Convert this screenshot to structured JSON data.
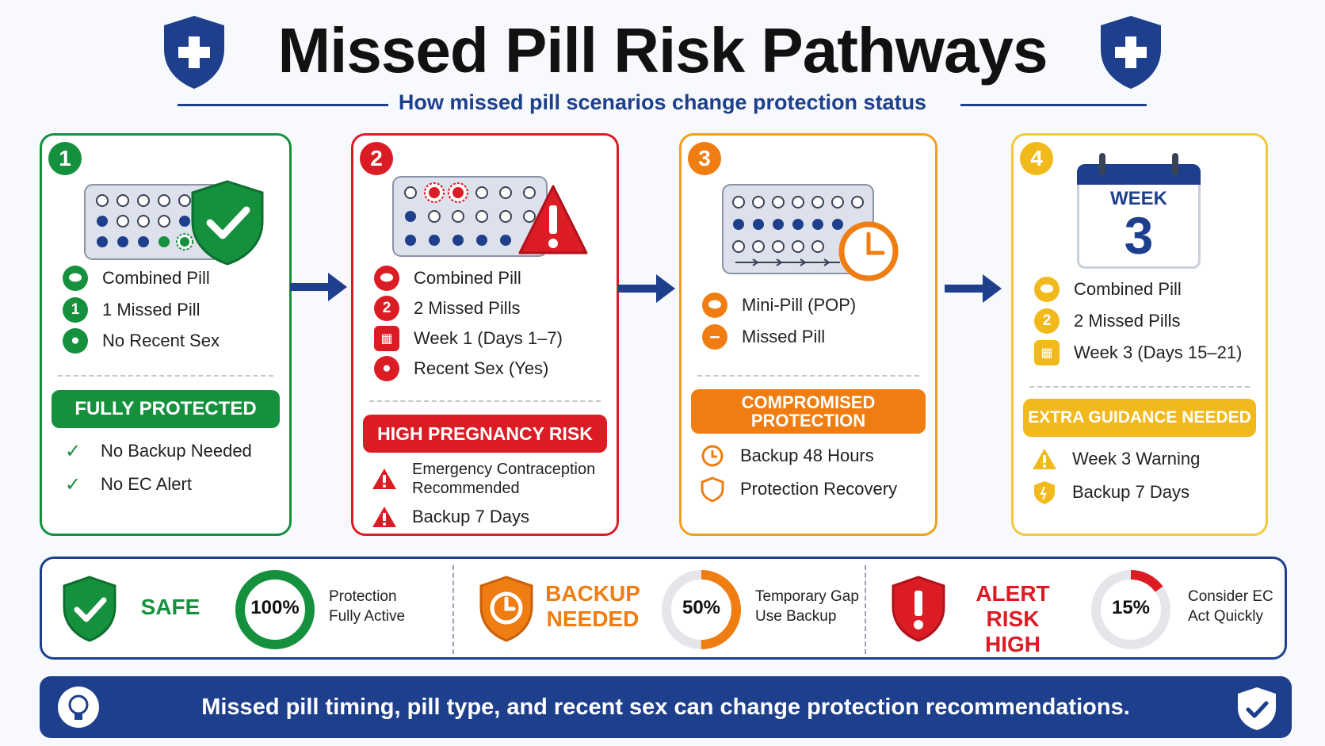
{
  "header": {
    "title": "Missed Pill Risk Pathways",
    "subtitle": "How missed pill scenarios change protection status"
  },
  "colors": {
    "green": "#15913e",
    "red": "#dc1c24",
    "orange": "#ef7d12",
    "gold": "#f2b91c",
    "navy": "#1d3f8c"
  },
  "cards": [
    {
      "number": "1",
      "rows": [
        "Combined Pill",
        "1 Missed Pill",
        "No Recent Sex"
      ],
      "banner": "FULLY PROTECTED",
      "subrows": [
        "No Backup Needed",
        "No EC Alert"
      ]
    },
    {
      "number": "2",
      "rows": [
        "Combined Pill",
        "2 Missed Pills",
        "Week 1 (Days 1–7)",
        "Recent Sex (Yes)"
      ],
      "banner": "HIGH PREGNANCY RISK",
      "subrows": [
        "Emergency Contraception Recommended",
        "Backup 7 Days"
      ]
    },
    {
      "number": "3",
      "rows": [
        "Mini-Pill (POP)",
        "Missed Pill"
      ],
      "banner": "COMPROMISED PROTECTION",
      "subrows": [
        "Backup 48 Hours",
        "Protection Recovery"
      ]
    },
    {
      "number": "4",
      "calendar_label": "WEEK",
      "calendar_number": "3",
      "rows": [
        "Combined Pill",
        "2 Missed Pills",
        "Week 3 (Days 15–21)"
      ],
      "banner": "EXTRA GUIDANCE NEEDED",
      "subrows": [
        "Week 3 Warning",
        "Backup 7 Days"
      ]
    }
  ],
  "row_icon_text": {
    "c1r2": "1",
    "c2r2": "2",
    "c4r2": "2"
  },
  "status": [
    {
      "label": "SAFE",
      "percent": "100%",
      "percent_value": 100,
      "desc_line1": "Protection",
      "desc_line2": "Fully Active"
    },
    {
      "label_line1": "BACKUP",
      "label_line2": "NEEDED",
      "percent": "50%",
      "percent_value": 50,
      "desc_line1": "Temporary Gap",
      "desc_line2": "Use Backup"
    },
    {
      "label_line1": "ALERT",
      "label_line2": "RISK HIGH",
      "percent": "15%",
      "percent_value": 15,
      "desc_line1": "Consider EC",
      "desc_line2": "Act Quickly"
    }
  ],
  "footer": {
    "text": "Missed pill timing, pill type, and recent sex can change protection recommendations."
  }
}
